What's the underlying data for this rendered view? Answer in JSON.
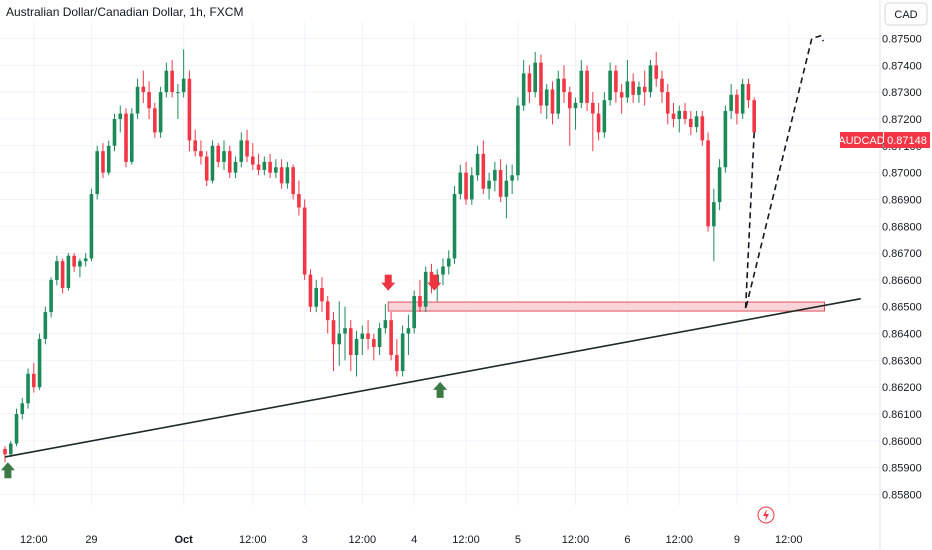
{
  "header": {
    "title": "Australian Dollar/Canadian Dollar, 1h, FXCM",
    "currency_button": "CAD"
  },
  "colors": {
    "up": "#22ab94",
    "up_dark": "#1b8a58",
    "down": "#f23645",
    "grid": "#f0f3fa",
    "price_badge": "#f23645",
    "zone_fill": "#f7c6cc",
    "zone_stroke": "#e0505e",
    "arrow_green": "#3b7a45",
    "arrow_red": "#ef3340"
  },
  "price_badge": {
    "symbol": "AUDCAD",
    "value": "0.87148"
  },
  "chart_data": {
    "type": "candlestick",
    "symbol": "AUDCAD",
    "timeframe": "1h",
    "source": "FXCM",
    "ylim": [
      0.8575,
      0.8755
    ],
    "yticks": [
      "0.87500",
      "0.87400",
      "0.87300",
      "0.87200",
      "0.87100",
      "0.87000",
      "0.86900",
      "0.86800",
      "0.86700",
      "0.86600",
      "0.86500",
      "0.86400",
      "0.86300",
      "0.86200",
      "0.86100",
      "0.86000",
      "0.85900",
      "0.85800"
    ],
    "xlim": [
      0,
      151
    ],
    "xticks": [
      {
        "label": "12:00",
        "x": 5,
        "bold": false
      },
      {
        "label": "29",
        "x": 15,
        "bold": false
      },
      {
        "label": "Oct",
        "x": 31,
        "bold": true
      },
      {
        "label": "12:00",
        "x": 43,
        "bold": false
      },
      {
        "label": "3",
        "x": 52,
        "bold": false
      },
      {
        "label": "12:00",
        "x": 62,
        "bold": false
      },
      {
        "label": "4",
        "x": 71,
        "bold": false
      },
      {
        "label": "12:00",
        "x": 80,
        "bold": false
      },
      {
        "label": "5",
        "x": 89,
        "bold": false
      },
      {
        "label": "12:00",
        "x": 99,
        "bold": false
      },
      {
        "label": "6",
        "x": 108,
        "bold": false
      },
      {
        "label": "12:00",
        "x": 117,
        "bold": false
      },
      {
        "label": "9",
        "x": 127,
        "bold": false
      },
      {
        "label": "12:00",
        "x": 136,
        "bold": false
      }
    ],
    "candles": [
      [
        0.8597,
        0.8598,
        0.8592,
        0.8595
      ],
      [
        0.8595,
        0.86,
        0.8594,
        0.8599
      ],
      [
        0.8599,
        0.8612,
        0.8598,
        0.861
      ],
      [
        0.861,
        0.8616,
        0.8608,
        0.8614
      ],
      [
        0.8614,
        0.8627,
        0.8612,
        0.8625
      ],
      [
        0.8625,
        0.8629,
        0.8618,
        0.862
      ],
      [
        0.862,
        0.864,
        0.8619,
        0.8638
      ],
      [
        0.8638,
        0.865,
        0.8636,
        0.8648
      ],
      [
        0.8648,
        0.8661,
        0.8646,
        0.866
      ],
      [
        0.866,
        0.8669,
        0.8658,
        0.8667
      ],
      [
        0.8667,
        0.8668,
        0.8655,
        0.8657
      ],
      [
        0.8657,
        0.867,
        0.8656,
        0.8669
      ],
      [
        0.8669,
        0.867,
        0.8663,
        0.8665
      ],
      [
        0.8665,
        0.8668,
        0.8661,
        0.8667
      ],
      [
        0.8667,
        0.867,
        0.8665,
        0.8668
      ],
      [
        0.8668,
        0.8694,
        0.8667,
        0.8692
      ],
      [
        0.8692,
        0.871,
        0.869,
        0.8708
      ],
      [
        0.8708,
        0.8711,
        0.8698,
        0.87
      ],
      [
        0.87,
        0.8712,
        0.8699,
        0.871
      ],
      [
        0.871,
        0.8722,
        0.8708,
        0.872
      ],
      [
        0.872,
        0.8725,
        0.8715,
        0.8722
      ],
      [
        0.8722,
        0.8724,
        0.8702,
        0.8704
      ],
      [
        0.8704,
        0.8724,
        0.8703,
        0.8722
      ],
      [
        0.8722,
        0.8735,
        0.872,
        0.8732
      ],
      [
        0.8732,
        0.8738,
        0.8726,
        0.873
      ],
      [
        0.873,
        0.8734,
        0.872,
        0.8724
      ],
      [
        0.8724,
        0.8726,
        0.8713,
        0.8715
      ],
      [
        0.8715,
        0.8732,
        0.8713,
        0.873
      ],
      [
        0.873,
        0.8741,
        0.8728,
        0.8738
      ],
      [
        0.8738,
        0.8742,
        0.8728,
        0.873
      ],
      [
        0.873,
        0.8733,
        0.872,
        0.873
      ],
      [
        0.873,
        0.8746,
        0.8728,
        0.8735
      ],
      [
        0.8735,
        0.8738,
        0.8708,
        0.8712
      ],
      [
        0.8712,
        0.8716,
        0.8706,
        0.8708
      ],
      [
        0.8708,
        0.8712,
        0.8703,
        0.8706
      ],
      [
        0.8706,
        0.8708,
        0.8695,
        0.8697
      ],
      [
        0.8697,
        0.8712,
        0.8696,
        0.871
      ],
      [
        0.871,
        0.8711,
        0.8702,
        0.8704
      ],
      [
        0.8704,
        0.8712,
        0.8701,
        0.8708
      ],
      [
        0.8708,
        0.871,
        0.8698,
        0.87
      ],
      [
        0.87,
        0.8706,
        0.8698,
        0.8704
      ],
      [
        0.8704,
        0.8715,
        0.8702,
        0.8712
      ],
      [
        0.8712,
        0.8716,
        0.8704,
        0.8706
      ],
      [
        0.8706,
        0.8711,
        0.8701,
        0.8703
      ],
      [
        0.8703,
        0.8707,
        0.8699,
        0.8701
      ],
      [
        0.8701,
        0.8706,
        0.8699,
        0.8704
      ],
      [
        0.8704,
        0.8707,
        0.8698,
        0.87
      ],
      [
        0.87,
        0.8705,
        0.8698,
        0.8702
      ],
      [
        0.8702,
        0.8705,
        0.8694,
        0.8696
      ],
      [
        0.8696,
        0.8704,
        0.8694,
        0.8702
      ],
      [
        0.8702,
        0.8703,
        0.869,
        0.8692
      ],
      [
        0.8692,
        0.8697,
        0.8684,
        0.8687
      ],
      [
        0.8687,
        0.869,
        0.866,
        0.8662
      ],
      [
        0.8662,
        0.8664,
        0.8648,
        0.865
      ],
      [
        0.865,
        0.866,
        0.8648,
        0.8657
      ],
      [
        0.8657,
        0.8661,
        0.8648,
        0.8652
      ],
      [
        0.8652,
        0.8654,
        0.864,
        0.8645
      ],
      [
        0.8645,
        0.8648,
        0.8626,
        0.8636
      ],
      [
        0.8636,
        0.8652,
        0.8628,
        0.864
      ],
      [
        0.864,
        0.865,
        0.863,
        0.8642
      ],
      [
        0.8642,
        0.8645,
        0.8626,
        0.8632
      ],
      [
        0.8632,
        0.8641,
        0.8624,
        0.8638
      ],
      [
        0.8638,
        0.8643,
        0.8632,
        0.864
      ],
      [
        0.864,
        0.8645,
        0.8634,
        0.8638
      ],
      [
        0.8638,
        0.864,
        0.863,
        0.8635
      ],
      [
        0.8635,
        0.8644,
        0.8632,
        0.8642
      ],
      [
        0.8642,
        0.8651,
        0.864,
        0.8645
      ],
      [
        0.8645,
        0.8648,
        0.863,
        0.8632
      ],
      [
        0.8632,
        0.8638,
        0.8624,
        0.8626
      ],
      [
        0.8626,
        0.8643,
        0.8624,
        0.864
      ],
      [
        0.864,
        0.8647,
        0.8632,
        0.8642
      ],
      [
        0.8642,
        0.8656,
        0.864,
        0.8654
      ],
      [
        0.8654,
        0.866,
        0.8648,
        0.865
      ],
      [
        0.865,
        0.8665,
        0.8648,
        0.8663
      ],
      [
        0.8663,
        0.8666,
        0.8655,
        0.8658
      ],
      [
        0.8658,
        0.8664,
        0.8652,
        0.8662
      ],
      [
        0.8662,
        0.8668,
        0.8658,
        0.8665
      ],
      [
        0.8665,
        0.8671,
        0.8662,
        0.8668
      ],
      [
        0.8668,
        0.8695,
        0.8666,
        0.8692
      ],
      [
        0.8692,
        0.8703,
        0.869,
        0.87
      ],
      [
        0.87,
        0.8704,
        0.8688,
        0.869
      ],
      [
        0.869,
        0.8702,
        0.8688,
        0.8699
      ],
      [
        0.8699,
        0.871,
        0.8697,
        0.8707
      ],
      [
        0.8707,
        0.8712,
        0.8692,
        0.8694
      ],
      [
        0.8694,
        0.87,
        0.869,
        0.8697
      ],
      [
        0.8697,
        0.8704,
        0.8693,
        0.8701
      ],
      [
        0.8701,
        0.8705,
        0.8689,
        0.8691
      ],
      [
        0.8691,
        0.8703,
        0.8683,
        0.8697
      ],
      [
        0.8697,
        0.8703,
        0.8692,
        0.8699
      ],
      [
        0.8699,
        0.8728,
        0.8697,
        0.8725
      ],
      [
        0.8725,
        0.8742,
        0.8723,
        0.8737
      ],
      [
        0.8737,
        0.874,
        0.8726,
        0.873
      ],
      [
        0.873,
        0.8745,
        0.8728,
        0.8741
      ],
      [
        0.8741,
        0.8744,
        0.8722,
        0.8725
      ],
      [
        0.8725,
        0.8733,
        0.872,
        0.8731
      ],
      [
        0.8731,
        0.8734,
        0.8718,
        0.8722
      ],
      [
        0.8722,
        0.8738,
        0.872,
        0.8735
      ],
      [
        0.8735,
        0.874,
        0.8726,
        0.873
      ],
      [
        0.873,
        0.8732,
        0.871,
        0.8724
      ],
      [
        0.8724,
        0.8728,
        0.8716,
        0.8726
      ],
      [
        0.8726,
        0.8742,
        0.8724,
        0.8738
      ],
      [
        0.8738,
        0.874,
        0.8723,
        0.8726
      ],
      [
        0.8726,
        0.873,
        0.8708,
        0.8722
      ],
      [
        0.8722,
        0.8726,
        0.8712,
        0.8715
      ],
      [
        0.8715,
        0.873,
        0.8713,
        0.8727
      ],
      [
        0.8727,
        0.8741,
        0.8725,
        0.8738
      ],
      [
        0.8738,
        0.874,
        0.8726,
        0.873
      ],
      [
        0.873,
        0.8733,
        0.8722,
        0.8728
      ],
      [
        0.8728,
        0.8742,
        0.8726,
        0.8734
      ],
      [
        0.8734,
        0.8737,
        0.8726,
        0.8729
      ],
      [
        0.8729,
        0.8734,
        0.8726,
        0.8732
      ],
      [
        0.8732,
        0.8738,
        0.8725,
        0.873
      ],
      [
        0.873,
        0.8742,
        0.8728,
        0.874
      ],
      [
        0.874,
        0.8745,
        0.8732,
        0.8735
      ],
      [
        0.8735,
        0.8738,
        0.8726,
        0.873
      ],
      [
        0.873,
        0.8733,
        0.8718,
        0.8722
      ],
      [
        0.8722,
        0.8726,
        0.8717,
        0.872
      ],
      [
        0.872,
        0.8725,
        0.8715,
        0.8723
      ],
      [
        0.8723,
        0.8726,
        0.8718,
        0.872
      ],
      [
        0.872,
        0.8723,
        0.8714,
        0.8717
      ],
      [
        0.8717,
        0.8723,
        0.8715,
        0.8721
      ],
      [
        0.8721,
        0.8723,
        0.871,
        0.8712
      ],
      [
        0.8712,
        0.8715,
        0.8678,
        0.868
      ],
      [
        0.868,
        0.8694,
        0.8667,
        0.8689
      ],
      [
        0.8689,
        0.8705,
        0.8686,
        0.8702
      ],
      [
        0.8702,
        0.8725,
        0.87,
        0.8723
      ],
      [
        0.8723,
        0.8733,
        0.872,
        0.8729
      ],
      [
        0.8729,
        0.8731,
        0.8718,
        0.8722
      ],
      [
        0.8722,
        0.8735,
        0.872,
        0.8733
      ],
      [
        0.8733,
        0.8735,
        0.8724,
        0.8727
      ],
      [
        0.8727,
        0.8728,
        0.8713,
        0.8715
      ]
    ],
    "projection": [
      [
        128.5,
        0.8649
      ],
      [
        140,
        0.875
      ],
      [
        141.5,
        0.8751
      ],
      [
        142,
        0.8749
      ]
    ],
    "trendline": [
      [
        0,
        0.8594
      ],
      [
        148.5,
        0.8653
      ]
    ],
    "zone": {
      "x0": 66.5,
      "x1": 142.2,
      "y0": 0.8648,
      "y1": 0.8651
    },
    "annotations": [
      {
        "type": "arrow-down",
        "color": "red",
        "x": 66.5,
        "y": 0.8656
      },
      {
        "type": "arrow-down",
        "color": "red",
        "x": 74.5,
        "y": 0.8656
      },
      {
        "type": "arrow-up",
        "color": "green",
        "x": 75.5,
        "y": 0.8622
      },
      {
        "type": "arrow-up",
        "color": "green",
        "x": 0.5,
        "y": 0.8592
      }
    ]
  }
}
